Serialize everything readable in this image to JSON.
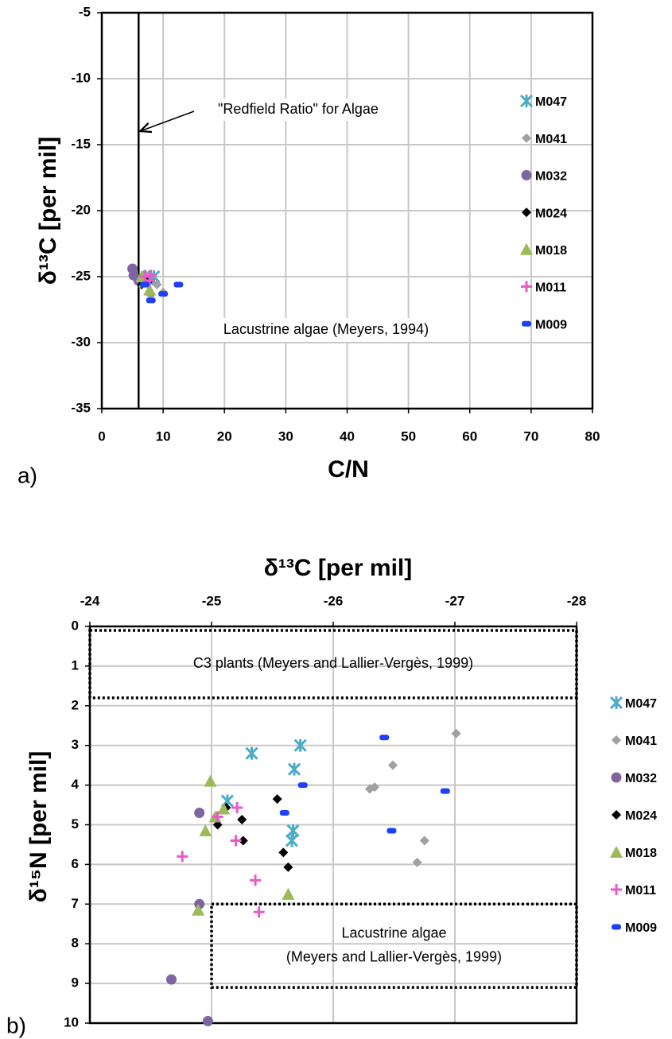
{
  "chart_data": [
    {
      "type": "scatter",
      "panel_label": "a)",
      "xlabel": "C/N",
      "ylabel": "δ¹³C [per mil]",
      "xlim": [
        0,
        80
      ],
      "xticks": [
        0,
        10,
        20,
        30,
        40,
        50,
        60,
        70,
        80
      ],
      "ylim": [
        -35,
        -5
      ],
      "yticks": [
        -35,
        -30,
        -25,
        -20,
        -15,
        -10,
        -5
      ],
      "grid": true,
      "legend": "inside",
      "vline": {
        "x": 6,
        "label": "\"Redfield Ratio\" for Algae"
      },
      "annotations": [
        "Lacustrine algae (Meyers, 1994)"
      ],
      "series": [
        {
          "name": "M047",
          "color": "#4bacc6",
          "marker": "asterisk",
          "x": [
            8.5,
            7.5
          ],
          "values": [
            -25.0,
            -25.2
          ]
        },
        {
          "name": "M041",
          "color": "#a0a0a0",
          "marker": "diamond",
          "x": [
            7,
            9,
            10,
            8
          ],
          "values": [
            -24.8,
            -25.6,
            -26.2,
            -26.4
          ]
        },
        {
          "name": "M032",
          "color": "#8064a2",
          "marker": "circle",
          "x": [
            5,
            5.2,
            6
          ],
          "values": [
            -24.4,
            -24.9,
            -25.3
          ]
        },
        {
          "name": "M024",
          "color": "#000000",
          "marker": "diamond",
          "x": [
            7,
            7.5,
            6.5
          ],
          "values": [
            -25.1,
            -25.4,
            -25.6
          ]
        },
        {
          "name": "M018",
          "color": "#9bbb59",
          "marker": "triangle",
          "x": [
            7,
            7.8,
            6.5
          ],
          "values": [
            -25.4,
            -26.0,
            -25.0
          ]
        },
        {
          "name": "M011",
          "color": "#e85ac8",
          "marker": "plus",
          "x": [
            7,
            7.8,
            8
          ],
          "values": [
            -25.0,
            -25.3,
            -24.9
          ]
        },
        {
          "name": "M009",
          "color": "#1f3fff",
          "marker": "dash",
          "x": [
            8,
            10,
            12.5,
            7
          ],
          "values": [
            -26.8,
            -26.3,
            -25.6,
            -25.6
          ]
        }
      ]
    },
    {
      "type": "scatter",
      "panel_label": "b)",
      "xlabel": "δ¹³C [per mil]",
      "ylabel": "δ¹⁵N [per mil]",
      "xlim": [
        -24,
        -28
      ],
      "xticks": [
        -24,
        -25,
        -26,
        -27,
        -28
      ],
      "xaxis_position": "top",
      "ylim": [
        10,
        0
      ],
      "yticks": [
        0,
        1,
        2,
        3,
        4,
        5,
        6,
        7,
        8,
        9,
        10
      ],
      "grid": true,
      "legend": "outside",
      "regions": [
        {
          "label": [
            "C3 plants (Meyers and Lallier-Vergès, 1999)"
          ],
          "xlim": [
            -24,
            -28
          ],
          "ylim": [
            0.1,
            1.8
          ]
        },
        {
          "label": [
            "Lacustrine algae",
            "(Meyers and Lallier-Vergès, 1999)"
          ],
          "xlim": [
            -25,
            -28
          ],
          "ylim": [
            7,
            9.1
          ]
        }
      ],
      "series": [
        {
          "name": "M047",
          "color": "#4bacc6",
          "marker": "asterisk",
          "x": [
            -25.73,
            -25.33,
            -25.68,
            -25.13,
            -25.67,
            -25.66
          ],
          "values": [
            3.0,
            3.2,
            3.6,
            4.4,
            5.15,
            5.4
          ]
        },
        {
          "name": "M041",
          "color": "#a0a0a0",
          "marker": "diamond",
          "x": [
            -27.01,
            -26.49,
            -26.34,
            -26.3,
            -26.75,
            -26.69
          ],
          "values": [
            2.7,
            3.5,
            4.05,
            4.1,
            5.4,
            5.95
          ]
        },
        {
          "name": "M032",
          "color": "#8064a2",
          "marker": "circle",
          "x": [
            -24.9,
            -24.9,
            -24.67,
            -24.97
          ],
          "values": [
            4.7,
            7.0,
            8.9,
            9.95
          ]
        },
        {
          "name": "M024",
          "color": "#000000",
          "marker": "diamond",
          "x": [
            -25.12,
            -25.05,
            -25.25,
            -25.26,
            -25.54,
            -25.59,
            -25.63
          ],
          "values": [
            4.57,
            5.0,
            4.87,
            5.4,
            4.35,
            5.7,
            6.07
          ]
        },
        {
          "name": "M018",
          "color": "#9bbb59",
          "marker": "triangle",
          "x": [
            -24.99,
            -25.03,
            -25.1,
            -24.95,
            -24.89,
            -25.63
          ],
          "values": [
            3.9,
            4.8,
            4.6,
            5.15,
            7.15,
            6.75
          ]
        },
        {
          "name": "M011",
          "color": "#e85ac8",
          "marker": "plus",
          "x": [
            -25.21,
            -25.05,
            -24.76,
            -25.2,
            -25.36,
            -25.39
          ],
          "values": [
            4.57,
            4.8,
            5.8,
            5.4,
            6.4,
            7.2
          ]
        },
        {
          "name": "M009",
          "color": "#1f3fff",
          "marker": "dash",
          "x": [
            -26.42,
            -25.75,
            -25.6,
            -26.48,
            -26.92
          ],
          "values": [
            2.8,
            4.0,
            4.7,
            5.15,
            4.15
          ]
        }
      ]
    }
  ]
}
